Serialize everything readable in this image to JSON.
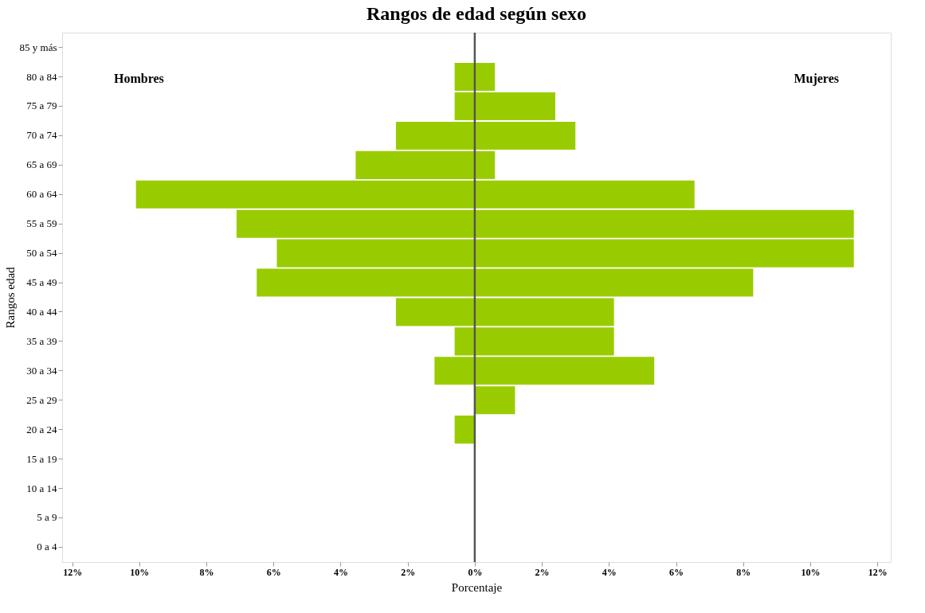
{
  "chart_data": {
    "type": "bar",
    "orientation": "horizontal",
    "title": "Rangos de edad según sexo",
    "xlabel": "Porcentaje",
    "ylabel": "Rangos edad",
    "categories": [
      "85 y más",
      "80 a 84",
      "75 a 79",
      "70 a 74",
      "65 a 69",
      "60 a 64",
      "55 a 59",
      "50 a 54",
      "45 a 49",
      "40 a 44",
      "35 a 39",
      "30 a 34",
      "25 a 29",
      "20 a 24",
      "15 a 19",
      "10 a 14",
      "5 a 9",
      "0 a 4"
    ],
    "series": [
      {
        "color": "#99cc00",
        "values": [
          0,
          -0.6,
          -0.6,
          -2.35,
          -3.55,
          -10.1,
          -7.1,
          -5.9,
          -6.5,
          -2.35,
          -0.6,
          -1.2,
          0,
          -0.6,
          0,
          0,
          0,
          0
        ]
      },
      {
        "color": "#99cc00",
        "values": [
          0,
          0.6,
          2.4,
          3.0,
          0.6,
          6.55,
          11.3,
          11.3,
          8.3,
          4.15,
          4.15,
          5.35,
          1.2,
          0,
          0,
          0,
          0,
          0
        ]
      }
    ],
    "xlim": [
      -12.3,
      12.4
    ],
    "xticks": [
      {
        "value": -12,
        "label": "12%"
      },
      {
        "value": -10,
        "label": "10%"
      },
      {
        "value": -8,
        "label": "8%"
      },
      {
        "value": -6,
        "label": "6%"
      },
      {
        "value": -4,
        "label": "4%"
      },
      {
        "value": -2,
        "label": "2%"
      },
      {
        "value": 0,
        "label": "0%"
      },
      {
        "value": 2,
        "label": "2%"
      },
      {
        "value": 4,
        "label": "4%"
      },
      {
        "value": 6,
        "label": "6%"
      },
      {
        "value": 8,
        "label": "8%"
      },
      {
        "value": 10,
        "label": "10%"
      },
      {
        "value": 12,
        "label": "12%"
      }
    ],
    "ref_lines": [
      {
        "axis": "x",
        "value": 0,
        "color": "#555555"
      }
    ],
    "annotations": [
      "Hombres",
      "Mujeres"
    ],
    "stacked": true,
    "grid": false,
    "legend": false
  }
}
